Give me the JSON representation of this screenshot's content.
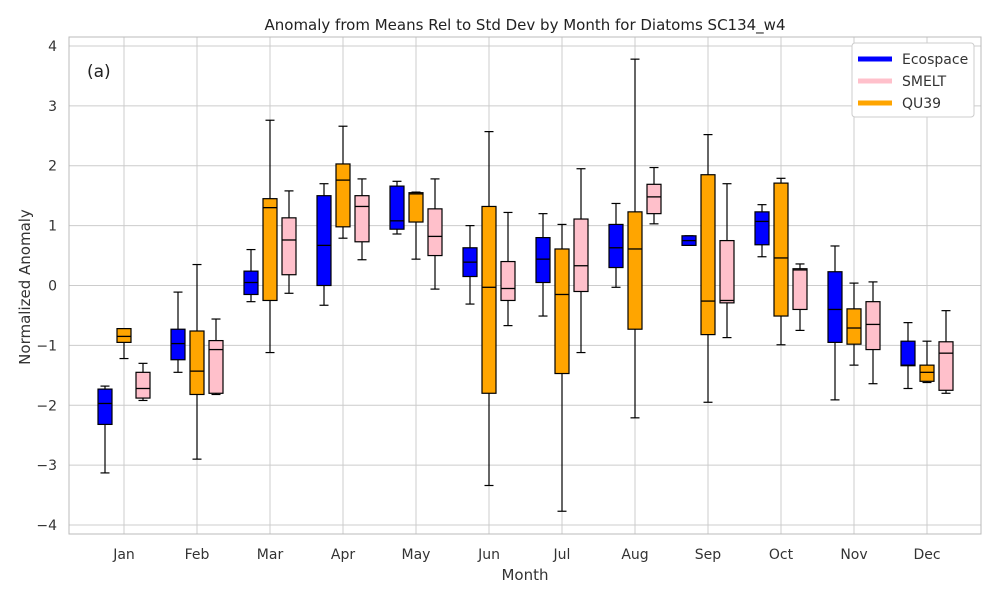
{
  "chart_data": {
    "type": "boxplot",
    "title": "Anomaly from Means Rel to Std Dev by Month for Diatoms SC134_w4",
    "xlabel": "Month",
    "ylabel": "Normalized Anomaly",
    "panel_label": "(a)",
    "ylim": [
      -4.15,
      4.15
    ],
    "yticks": [
      -4,
      -3,
      -2,
      -1,
      0,
      1,
      2,
      3,
      4
    ],
    "ytick_labels": [
      "−4",
      "−3",
      "−2",
      "−1",
      "0",
      "1",
      "2",
      "3",
      "4"
    ],
    "grid": true,
    "legend_position": "top-right",
    "categories": [
      "Jan",
      "Feb",
      "Mar",
      "Apr",
      "May",
      "Jun",
      "Jul",
      "Aug",
      "Sep",
      "Oct",
      "Nov",
      "Dec"
    ],
    "series": [
      {
        "name": "Ecospace",
        "color": "#0000ff",
        "boxes": [
          {
            "whislo": -3.13,
            "q1": -2.32,
            "med": -1.97,
            "q3": -1.73,
            "whishi": -1.68
          },
          {
            "whislo": -1.45,
            "q1": -1.24,
            "med": -0.97,
            "q3": -0.73,
            "whishi": -0.11
          },
          {
            "whislo": -0.27,
            "q1": -0.15,
            "med": 0.05,
            "q3": 0.24,
            "whishi": 0.6
          },
          {
            "whislo": -0.33,
            "q1": 0.0,
            "med": 0.67,
            "q3": 1.5,
            "whishi": 1.7
          },
          {
            "whislo": 0.86,
            "q1": 0.94,
            "med": 1.08,
            "q3": 1.66,
            "whishi": 1.74
          },
          {
            "whislo": -0.31,
            "q1": 0.15,
            "med": 0.39,
            "q3": 0.63,
            "whishi": 1.0
          },
          {
            "whislo": -0.51,
            "q1": 0.05,
            "med": 0.44,
            "q3": 0.8,
            "whishi": 1.2
          },
          {
            "whislo": -0.03,
            "q1": 0.3,
            "med": 0.63,
            "q3": 1.02,
            "whishi": 1.37
          },
          {
            "whislo": 0.67,
            "q1": 0.67,
            "med": 0.75,
            "q3": 0.83,
            "whishi": 0.83
          },
          {
            "whislo": 0.48,
            "q1": 0.68,
            "med": 1.07,
            "q3": 1.23,
            "whishi": 1.35
          },
          {
            "whislo": -1.91,
            "q1": -0.95,
            "med": -0.4,
            "q3": 0.23,
            "whishi": 0.66
          },
          {
            "whislo": -1.72,
            "q1": -1.34,
            "med": -1.33,
            "q3": -0.93,
            "whishi": -0.62
          }
        ]
      },
      {
        "name": "SMELT",
        "color": "#ffc0cb",
        "boxes": [
          {
            "whislo": -1.92,
            "q1": -1.88,
            "med": -1.72,
            "q3": -1.45,
            "whishi": -1.3
          },
          {
            "whislo": -1.82,
            "q1": -1.8,
            "med": -1.07,
            "q3": -0.92,
            "whishi": -0.56
          },
          {
            "whislo": -0.13,
            "q1": 0.18,
            "med": 0.76,
            "q3": 1.13,
            "whishi": 1.58
          },
          {
            "whislo": 0.43,
            "q1": 0.73,
            "med": 1.32,
            "q3": 1.5,
            "whishi": 1.78
          },
          {
            "whislo": -0.06,
            "q1": 0.5,
            "med": 0.82,
            "q3": 1.28,
            "whishi": 1.78
          },
          {
            "whislo": -0.67,
            "q1": -0.25,
            "med": -0.05,
            "q3": 0.4,
            "whishi": 1.22
          },
          {
            "whislo": -1.12,
            "q1": -0.1,
            "med": 0.33,
            "q3": 1.11,
            "whishi": 1.95
          },
          {
            "whislo": 1.03,
            "q1": 1.2,
            "med": 1.48,
            "q3": 1.69,
            "whishi": 1.97
          },
          {
            "whislo": -0.87,
            "q1": -0.29,
            "med": -0.25,
            "q3": 0.75,
            "whishi": 1.7
          },
          {
            "whislo": -0.75,
            "q1": -0.4,
            "med": 0.26,
            "q3": 0.28,
            "whishi": 0.36
          },
          {
            "whislo": -1.64,
            "q1": -1.07,
            "med": -0.65,
            "q3": -0.27,
            "whishi": 0.06
          },
          {
            "whislo": -1.8,
            "q1": -1.75,
            "med": -1.13,
            "q3": -0.94,
            "whishi": -0.42
          }
        ]
      },
      {
        "name": "QU39",
        "color": "#ffa500",
        "boxes": [
          {
            "whislo": -1.22,
            "q1": -0.95,
            "med": -0.85,
            "q3": -0.72,
            "whishi": -0.72
          },
          {
            "whislo": -2.9,
            "q1": -1.82,
            "med": -1.43,
            "q3": -0.76,
            "whishi": 0.35
          },
          {
            "whislo": -1.12,
            "q1": -0.25,
            "med": 1.3,
            "q3": 1.45,
            "whishi": 2.76
          },
          {
            "whislo": 0.79,
            "q1": 0.98,
            "med": 1.76,
            "q3": 2.03,
            "whishi": 2.66
          },
          {
            "whislo": 0.44,
            "q1": 1.06,
            "med": 1.53,
            "q3": 1.55,
            "whishi": 1.56
          },
          {
            "whislo": -3.34,
            "q1": -1.8,
            "med": -0.03,
            "q3": 1.32,
            "whishi": 2.57
          },
          {
            "whislo": -3.77,
            "q1": -1.47,
            "med": -0.15,
            "q3": 0.61,
            "whishi": 1.02
          },
          {
            "whislo": -2.21,
            "q1": -0.73,
            "med": 0.61,
            "q3": 1.23,
            "whishi": 3.78
          },
          {
            "whislo": -1.95,
            "q1": -0.82,
            "med": -0.26,
            "q3": 1.85,
            "whishi": 2.52
          },
          {
            "whislo": -0.99,
            "q1": -0.51,
            "med": 0.46,
            "q3": 1.71,
            "whishi": 1.79
          },
          {
            "whislo": -1.33,
            "q1": -0.98,
            "med": -0.71,
            "q3": -0.39,
            "whishi": 0.04
          },
          {
            "whislo": -1.62,
            "q1": -1.6,
            "med": -1.45,
            "q3": -1.33,
            "whishi": -0.93
          }
        ]
      }
    ],
    "box_order": [
      "Ecospace",
      "QU39",
      "SMELT"
    ]
  }
}
